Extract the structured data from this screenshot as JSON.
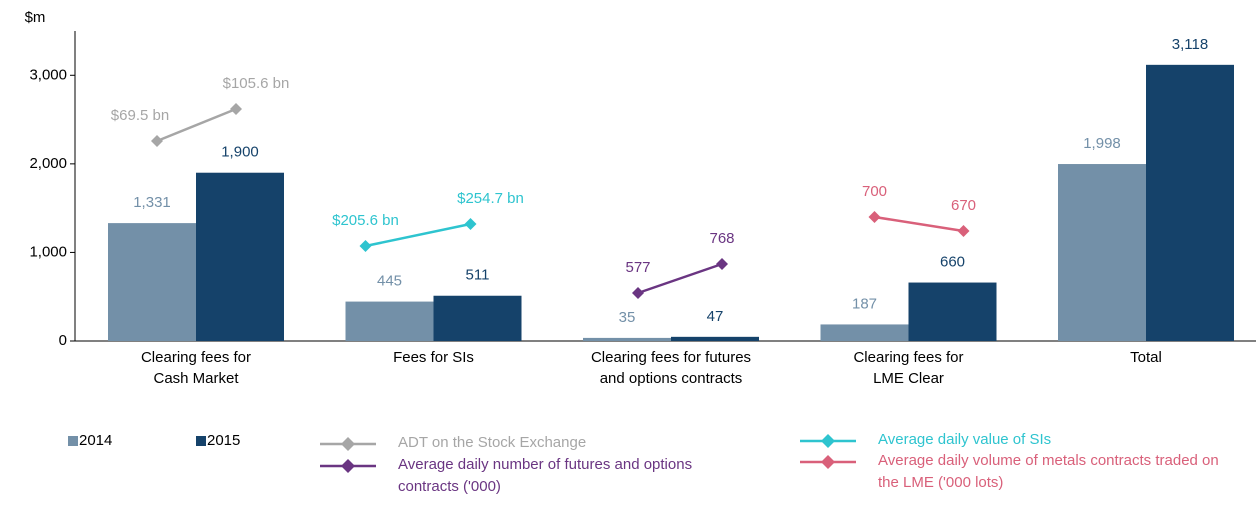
{
  "chart_data": {
    "type": "bar",
    "y_label": "$m",
    "categories": [
      [
        "Clearing fees for",
        "Cash Market"
      ],
      [
        "Fees for SIs"
      ],
      [
        "Clearing fees for futures",
        "and options contracts"
      ],
      [
        "Clearing fees for",
        "LME Clear"
      ],
      [
        "Total"
      ]
    ],
    "series": [
      {
        "name": "2014",
        "color": "#7390a8",
        "values": [
          1331,
          445,
          35,
          187,
          1998
        ],
        "value_labels": [
          "1,331",
          "445",
          "35",
          "187",
          "1,998"
        ]
      },
      {
        "name": "2015",
        "color": "#15426a",
        "values": [
          1900,
          511,
          47,
          660,
          3118
        ],
        "value_labels": [
          "1,900",
          "511",
          "47",
          "660",
          "3,118"
        ]
      }
    ],
    "lines": [
      {
        "name": "ADT on the Stock Exchange",
        "color": "#a6a6a6",
        "values": [
          69.5,
          105.6
        ],
        "value_labels": [
          "$69.5 bn",
          "$105.6 bn"
        ]
      },
      {
        "name": "Average daily value of SIs",
        "color": "#2ec4cf",
        "values": [
          205.6,
          254.7
        ],
        "value_labels": [
          "$205.6 bn",
          "$254.7 bn"
        ]
      },
      {
        "name": "Average daily number of futures and options contracts ('000)",
        "color": "#6a3582",
        "values": [
          577,
          768
        ],
        "value_labels": [
          "577",
          "768"
        ]
      },
      {
        "name": "Average daily volume of metals contracts traded on the LME ('000 lots)",
        "color": "#d9607a",
        "values": [
          700,
          670
        ],
        "value_labels": [
          "700",
          "670"
        ]
      }
    ],
    "ylim": [
      0,
      3500
    ],
    "yticks": [
      0,
      {
        "value": 1000,
        "label": "1,000"
      },
      {
        "value": 2000,
        "label": "2,000"
      },
      {
        "value": 3000,
        "label": "3,000"
      }
    ]
  }
}
